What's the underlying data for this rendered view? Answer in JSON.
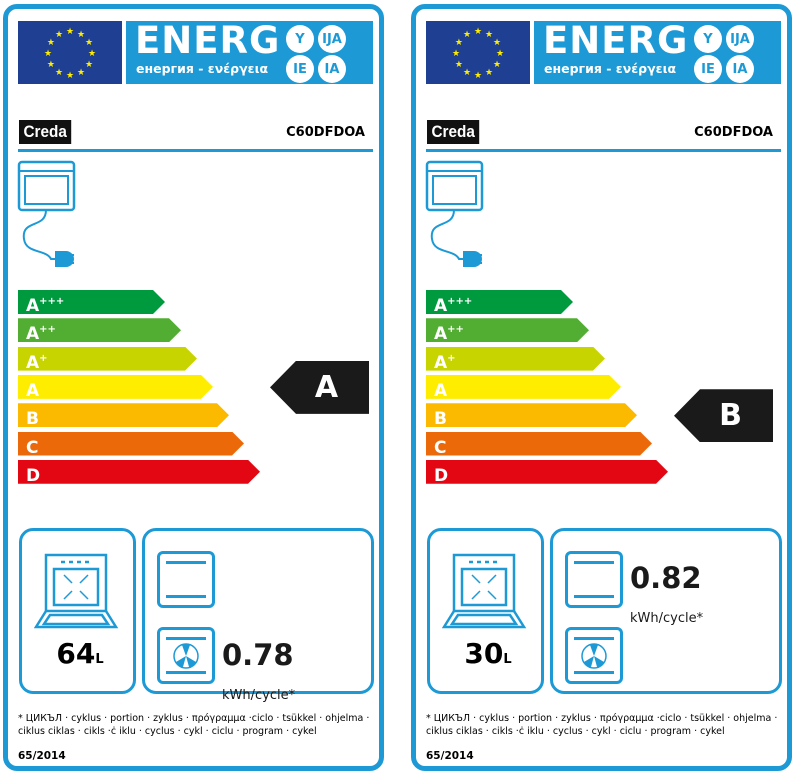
{
  "labels": [
    {
      "header": {
        "energ": "ENERG",
        "subtitle": "енергия - ενέργεια",
        "langs": [
          "Y",
          "IJA",
          "IE",
          "IA"
        ]
      },
      "brand": "Creda",
      "model": "C60DFDOA",
      "classes": [
        {
          "main": "A",
          "sup": "+++",
          "color": "#009a3e"
        },
        {
          "main": "A",
          "sup": "++",
          "color": "#52ae32"
        },
        {
          "main": "A",
          "sup": "+",
          "color": "#c8d400"
        },
        {
          "main": "A",
          "sup": "",
          "color": "#ffed00"
        },
        {
          "main": "B",
          "sup": "",
          "color": "#fbba00"
        },
        {
          "main": "C",
          "sup": "",
          "color": "#eb6909"
        },
        {
          "main": "D",
          "sup": "",
          "color": "#e30613"
        }
      ],
      "rating": "A",
      "volume": {
        "value": "64",
        "unit": "L"
      },
      "conventional_energy": {
        "value": "",
        "unit": ""
      },
      "fan_energy": {
        "value": "0.78",
        "unit": "kWh/cycle*"
      },
      "footnote": "* ЦИКЪЛ · cyklus · portion · zyklus · πρόγραμμα ·ciclo · tsükkel · ohjelma · ciklus ciklas · cikls ·ċ iklu · cyclus · cykl · ciclu · program · cykel",
      "regulation": "65/2014"
    },
    {
      "header": {
        "energ": "ENERG",
        "subtitle": "енергия - ενέργεια",
        "langs": [
          "Y",
          "IJA",
          "IE",
          "IA"
        ]
      },
      "brand": "Creda",
      "model": "C60DFDOA",
      "classes": [
        {
          "main": "A",
          "sup": "+++",
          "color": "#009a3e"
        },
        {
          "main": "A",
          "sup": "++",
          "color": "#52ae32"
        },
        {
          "main": "A",
          "sup": "+",
          "color": "#c8d400"
        },
        {
          "main": "A",
          "sup": "",
          "color": "#ffed00"
        },
        {
          "main": "B",
          "sup": "",
          "color": "#fbba00"
        },
        {
          "main": "C",
          "sup": "",
          "color": "#eb6909"
        },
        {
          "main": "D",
          "sup": "",
          "color": "#e30613"
        }
      ],
      "rating": "B",
      "volume": {
        "value": "30",
        "unit": "L"
      },
      "conventional_energy": {
        "value": "0.82",
        "unit": "kWh/cycle*"
      },
      "fan_energy": {
        "value": "",
        "unit": ""
      },
      "footnote": "* ЦИКЪЛ · cyklus · portion · zyklus · πρόγραμμα ·ciclo · tsükkel · ohjelma · ciklus ciklas · cikls ·ċ iklu · cyclus · cykl · ciclu · program · cykel",
      "regulation": "65/2014"
    }
  ]
}
